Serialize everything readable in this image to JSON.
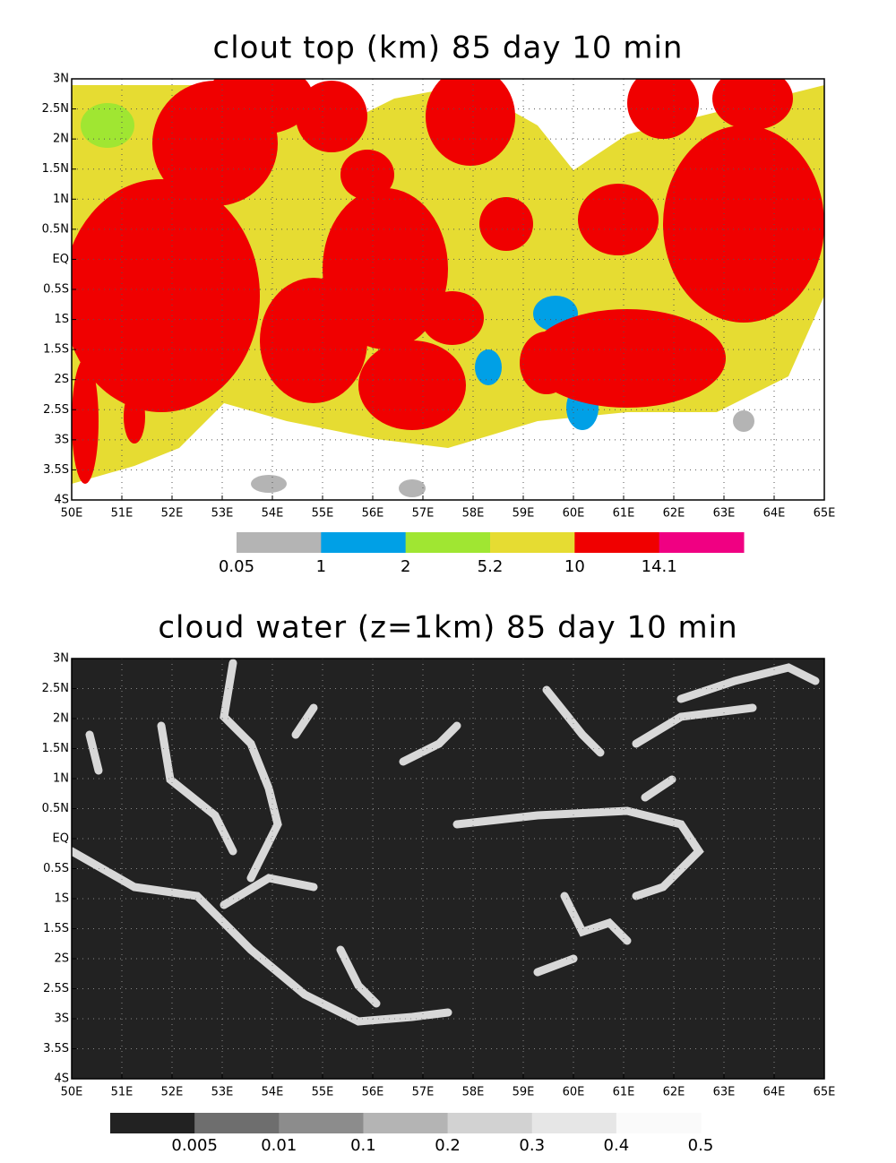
{
  "panels": [
    {
      "title": "clout top (km) 85 day 10 min",
      "xticks": [
        "50E",
        "51E",
        "52E",
        "53E",
        "54E",
        "55E",
        "56E",
        "57E",
        "58E",
        "59E",
        "60E",
        "61E",
        "62E",
        "63E",
        "64E",
        "65E"
      ],
      "yticks": [
        "3N",
        "2.5N",
        "2N",
        "1.5N",
        "1N",
        "0.5N",
        "EQ",
        "0.5S",
        "1S",
        "1.5S",
        "2S",
        "2.5S",
        "3S",
        "3.5S",
        "4S"
      ],
      "colorbar": {
        "colors": [
          "#b4b4b4",
          "#00a0e6",
          "#a0e632",
          "#e6dc32",
          "#f00000",
          "#f00082"
        ],
        "labels": [
          0.05,
          1,
          2,
          5.2,
          10,
          14.1
        ]
      }
    },
    {
      "title": "cloud water (z=1km) 85 day 10 min",
      "xticks": [
        "50E",
        "51E",
        "52E",
        "53E",
        "54E",
        "55E",
        "56E",
        "57E",
        "58E",
        "59E",
        "60E",
        "61E",
        "62E",
        "63E",
        "64E",
        "65E"
      ],
      "yticks": [
        "3N",
        "2.5N",
        "2N",
        "1.5N",
        "1N",
        "0.5N",
        "EQ",
        "0.5S",
        "1S",
        "1.5S",
        "2S",
        "2.5S",
        "3S",
        "3.5S",
        "4S"
      ],
      "colorbar": {
        "colors": [
          "#222222",
          "#6e6e6e",
          "#8c8c8c",
          "#b4b4b4",
          "#d2d2d2",
          "#e6e6e6",
          "#fafafa"
        ],
        "labels": [
          0.005,
          0.01,
          0.1,
          0.2,
          0.3,
          0.4,
          0.5
        ]
      }
    }
  ]
}
